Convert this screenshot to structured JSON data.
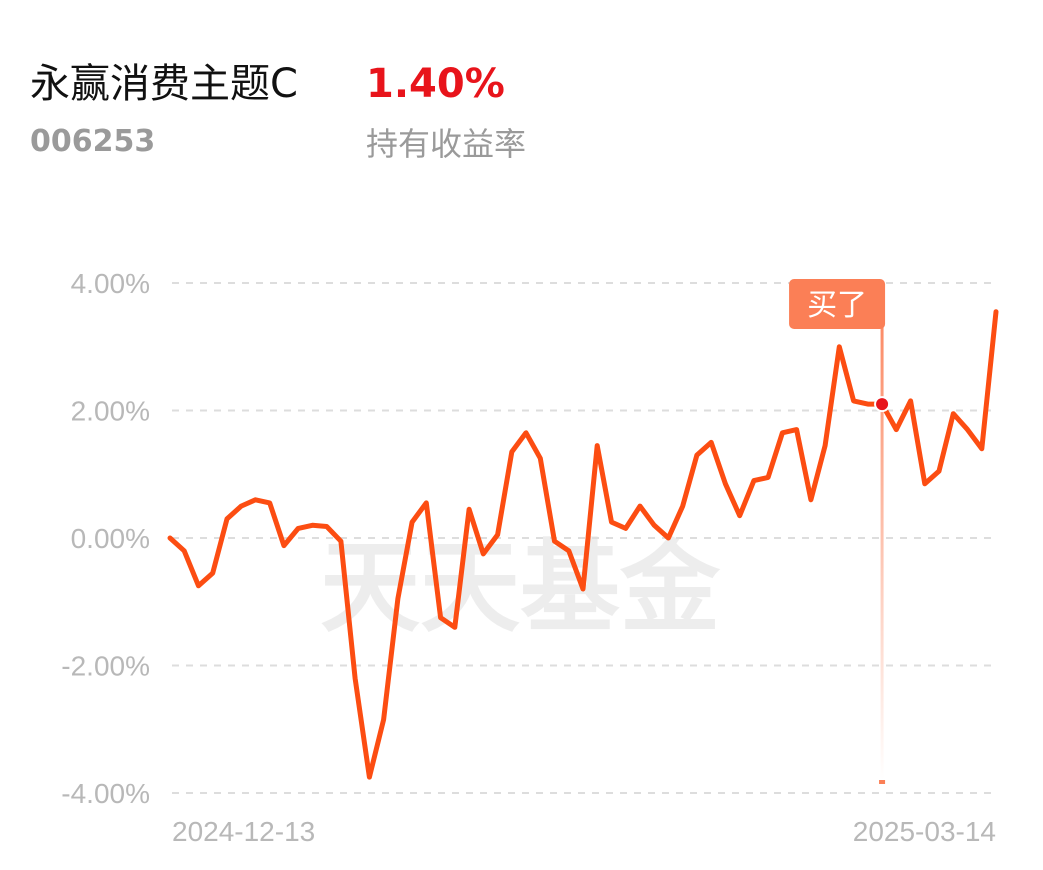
{
  "fund": {
    "name": "永赢消费主题C",
    "code": "006253",
    "return_value": "1.40%",
    "return_label": "持有收益率"
  },
  "watermark": "天天基金",
  "marker": {
    "label": "买了",
    "index": 50
  },
  "colors": {
    "line": "#fc4d12",
    "positive": "#e8141b",
    "badge": "#fb7f56",
    "grid": "#dddddd",
    "muted": "#9a9a9a"
  },
  "chart_data": {
    "type": "line",
    "title": "",
    "xlabel": "",
    "ylabel": "",
    "ylim": [
      -4,
      4
    ],
    "yticks": [
      4,
      2,
      0,
      -2,
      -4
    ],
    "ytick_labels": [
      "4.00%",
      "2.00%",
      "0.00%",
      "-2.00%",
      "-4.00%"
    ],
    "xtick_labels": [
      "2024-12-13",
      "2025-03-14"
    ],
    "grid": true,
    "series": [
      {
        "values": [
          0.0,
          -0.2,
          -0.75,
          -0.55,
          0.3,
          0.5,
          0.6,
          0.55,
          -0.12,
          0.15,
          0.2,
          0.18,
          -0.05,
          -2.2,
          -3.75,
          -2.85,
          -0.95,
          0.25,
          0.55,
          -1.25,
          -1.4,
          0.45,
          -0.25,
          0.05,
          1.35,
          1.65,
          1.25,
          -0.05,
          -0.2,
          -0.8,
          1.45,
          0.25,
          0.15,
          0.5,
          0.2,
          0.0,
          0.5,
          1.3,
          1.5,
          0.85,
          0.35,
          0.9,
          0.95,
          1.65,
          1.7,
          0.6,
          1.45,
          3.0,
          2.15,
          2.1,
          2.1,
          1.7,
          2.15,
          0.85,
          1.05,
          1.95,
          1.7,
          1.4,
          3.55
        ]
      }
    ]
  }
}
